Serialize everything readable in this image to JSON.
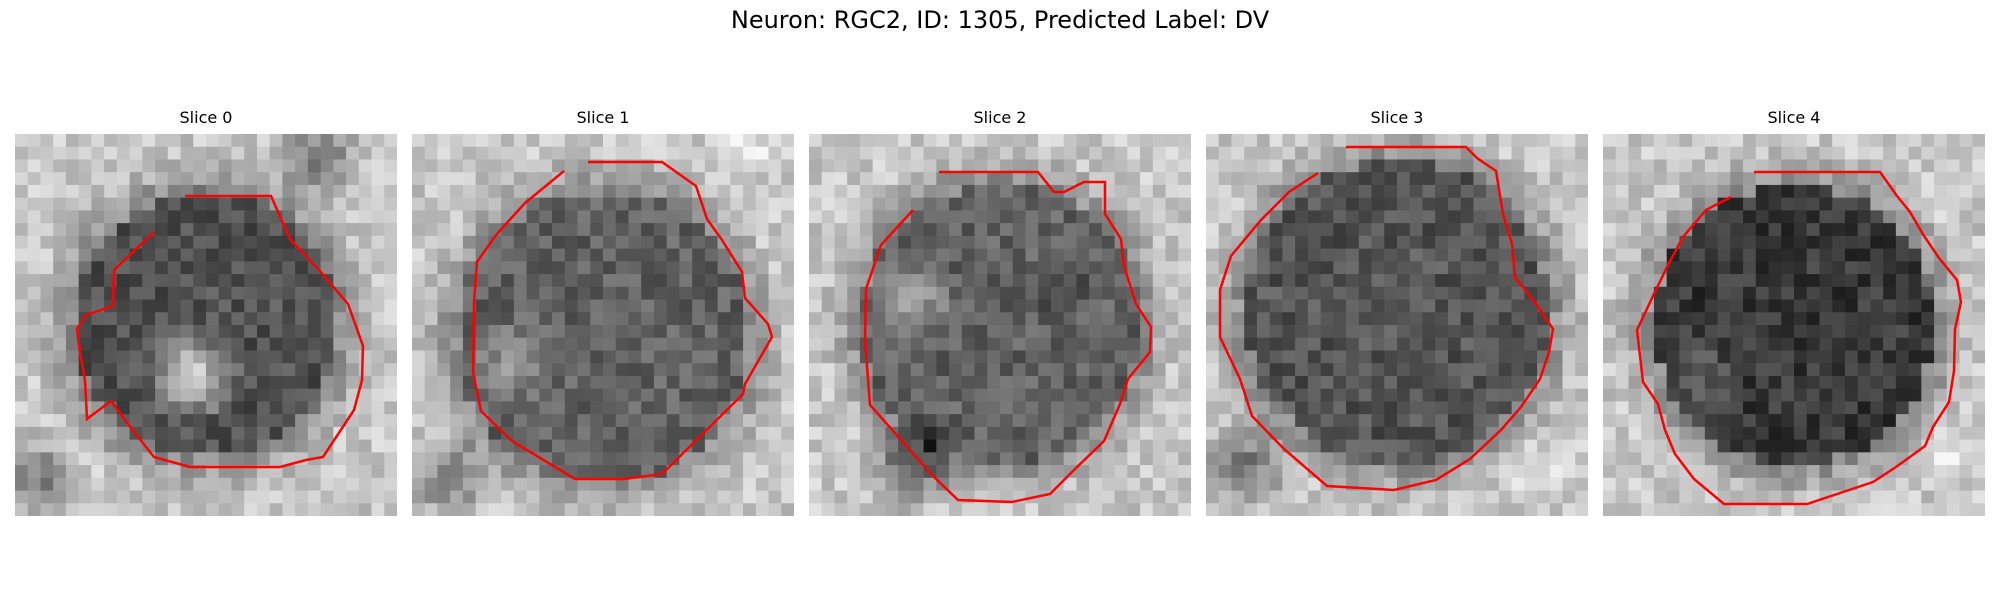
{
  "figure": {
    "title": "Neuron: RGC2, ID: 1305, Predicted Label: DV"
  },
  "contour_color": "#ff0000",
  "image_colormap": "gray",
  "panels": [
    {
      "title": "Slice 0"
    },
    {
      "title": "Slice 1"
    },
    {
      "title": "Slice 2"
    },
    {
      "title": "Slice 3"
    },
    {
      "title": "Slice 4"
    }
  ]
}
